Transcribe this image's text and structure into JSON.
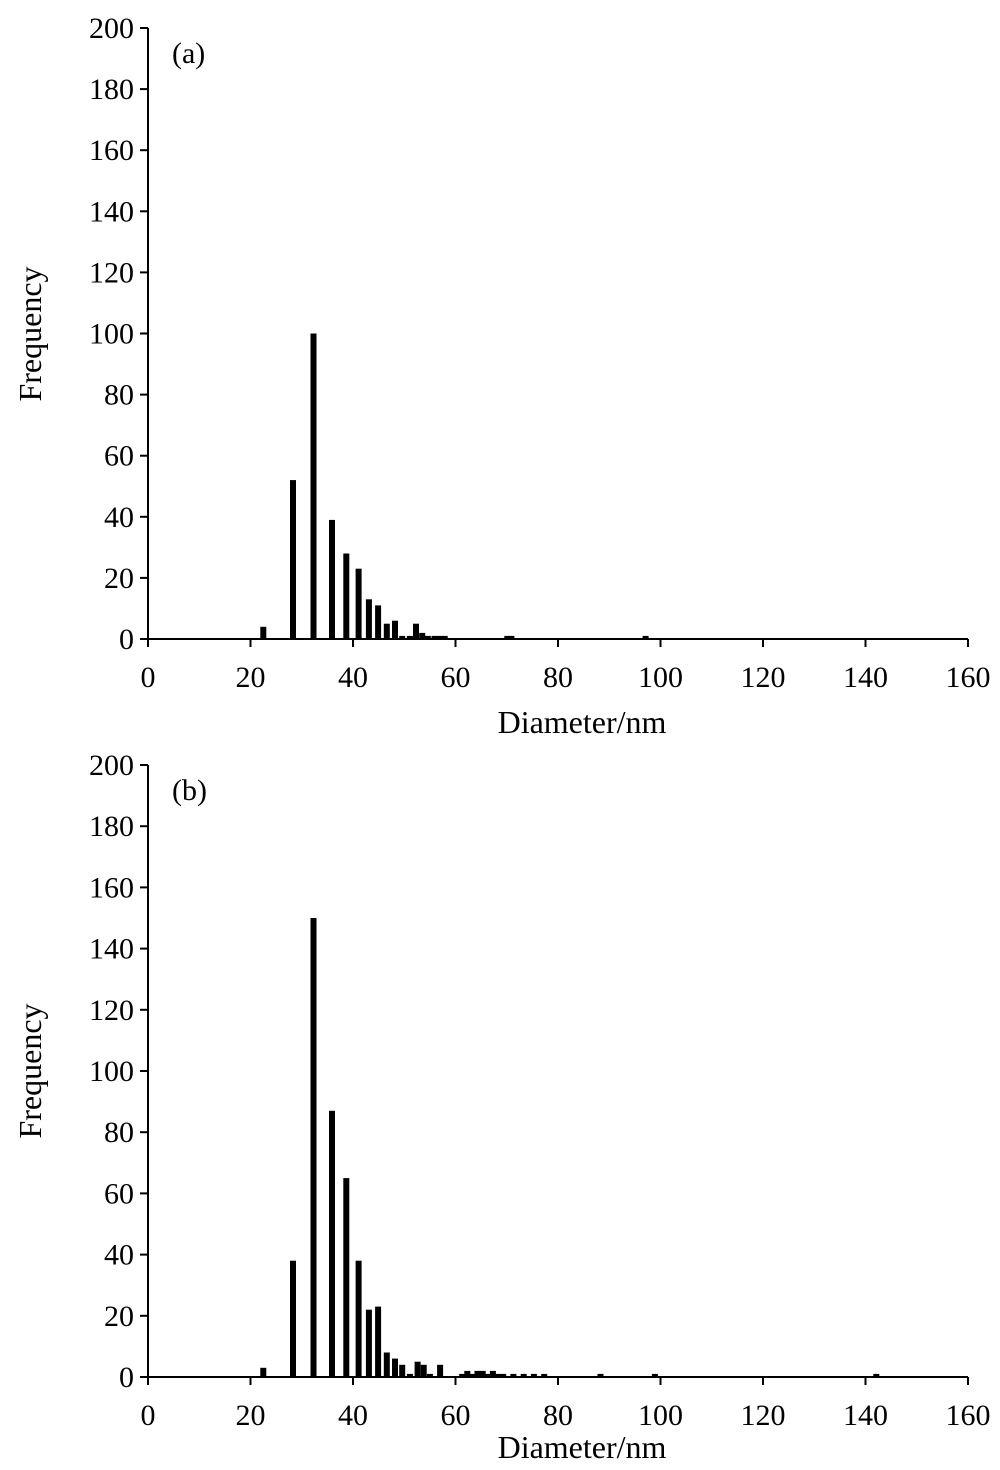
{
  "chart_data": [
    {
      "type": "bar",
      "panel_label": "(a)",
      "xlabel": "Diameter/nm",
      "ylabel": "Frequency",
      "xlim": [
        0,
        160
      ],
      "ylim": [
        0,
        200
      ],
      "x_ticks": [
        "0",
        "20",
        "40",
        "60",
        "80",
        "100",
        "120",
        "140",
        "160"
      ],
      "y_ticks": [
        "0",
        "20",
        "40",
        "60",
        "80",
        "100",
        "120",
        "140",
        "160",
        "180",
        "200"
      ],
      "grid": false,
      "legend": "none",
      "bar_color": "#000000",
      "x": [
        22.5,
        28.3,
        32.3,
        35.9,
        38.7,
        41.1,
        43.1,
        44.9,
        46.6,
        48.2,
        49.6,
        51.1,
        52.3,
        53.5,
        54.6,
        55.9,
        56.9,
        57.9,
        70.1,
        70.9,
        97.1
      ],
      "values": [
        4,
        52,
        100,
        39,
        28,
        23,
        13,
        11,
        5,
        6,
        1,
        1,
        5,
        2,
        1,
        1,
        1,
        1,
        1,
        1,
        1
      ]
    },
    {
      "type": "bar",
      "panel_label": "(b)",
      "xlabel": "Diameter/nm",
      "ylabel": "Frequency",
      "xlim": [
        0,
        160
      ],
      "ylim": [
        0,
        200
      ],
      "x_ticks": [
        "0",
        "20",
        "40",
        "60",
        "80",
        "100",
        "120",
        "140",
        "160"
      ],
      "y_ticks": [
        "0",
        "20",
        "40",
        "60",
        "80",
        "100",
        "120",
        "140",
        "160",
        "180",
        "200"
      ],
      "grid": false,
      "legend": "none",
      "bar_color": "#000000",
      "x": [
        22.5,
        28.3,
        32.3,
        35.9,
        38.7,
        41.1,
        43.1,
        44.9,
        46.6,
        48.2,
        49.6,
        51.1,
        52.6,
        53.8,
        55.0,
        57.0,
        61.3,
        62.3,
        63.3,
        64.3,
        65.3,
        66.3,
        67.3,
        68.3,
        69.3,
        71.3,
        73.3,
        75.3,
        77.3,
        88.3,
        98.9,
        142.1
      ],
      "values": [
        3,
        38,
        150,
        87,
        65,
        38,
        22,
        23,
        8,
        6,
        4,
        1,
        5,
        4,
        1,
        4,
        1,
        2,
        1,
        2,
        2,
        1,
        2,
        1,
        1,
        1,
        1,
        1,
        1,
        1,
        1,
        1
      ]
    }
  ]
}
